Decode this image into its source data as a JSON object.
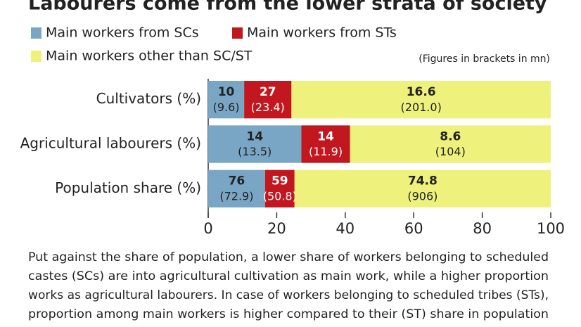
{
  "chart_data": {
    "type": "stacked-barh",
    "title": "Labourers come from the lower strata of society",
    "note": "(Figures in brackets in mn)",
    "categories": [
      "Cultivators (%)",
      "Agricultural labourers (%)",
      "Population share (%)"
    ],
    "series": [
      {
        "name": "Main workers from SCs",
        "color": "#7aa6c6",
        "values": [
          10.5,
          27.2,
          16.6
        ],
        "share_labels": [
          10,
          14,
          76
        ],
        "count_labels": [
          "(9.6)",
          "(13.5)",
          "(72.9)"
        ]
      },
      {
        "name": "Main workers from STs",
        "color": "#c3171f",
        "values": [
          13.8,
          14.2,
          8.6
        ],
        "share_labels": [
          27,
          14,
          59
        ],
        "count_labels": [
          "(23.4)",
          "(11.9)",
          "(50.8)"
        ]
      },
      {
        "name": "Main workers other than SC/ST",
        "color": "#eef17c",
        "values": [
          75.7,
          58.6,
          74.8
        ],
        "share_labels": [
          16.6,
          8.6,
          74.8
        ],
        "count_labels": [
          "(201.0)",
          "(104)",
          "(906)"
        ]
      }
    ],
    "xlim": [
      0,
      100
    ],
    "xticks": [
      0,
      20,
      40,
      60,
      80,
      100
    ],
    "caption": [
      "Put against the share of population, a lower share of workers belonging to scheduled",
      "castes (SCs) are into agricultural cultivation as main work, while a higher proportion",
      "works as agricultural labourers. In case of workers belonging to scheduled tribes (STs),",
      "proportion among main workers is higher compared to their (ST) share in population"
    ]
  }
}
